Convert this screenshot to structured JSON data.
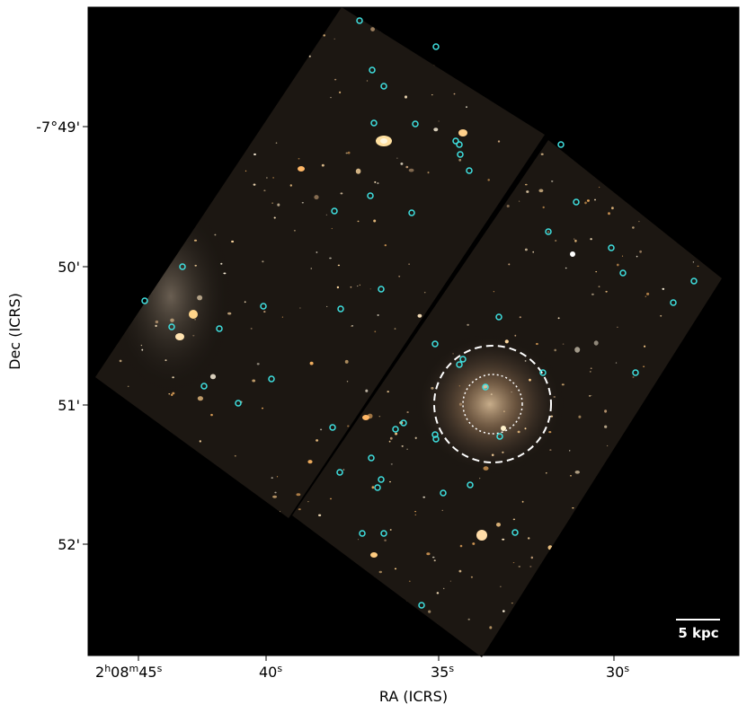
{
  "axes": {
    "xlabel": "RA (ICRS)",
    "ylabel": "Dec (ICRS)",
    "x_ticks": [
      {
        "label_main": "2",
        "sup_h": "h",
        "mid": "08",
        "sup_m": "m",
        "tail": "45",
        "sup_s": "s"
      },
      {
        "label": "40",
        "sup_s": "s"
      },
      {
        "label": "35",
        "sup_s": "s"
      },
      {
        "label": "30",
        "sup_s": "s"
      }
    ],
    "y_ticks": [
      "-7°49'",
      "50'",
      "51'",
      "52'"
    ]
  },
  "scalebar": {
    "label": "5 kpc"
  },
  "colors": {
    "background": "#000000",
    "markers": "#3fe0e0",
    "apertures": "#ffffff",
    "galaxy_glow": "#d8b890"
  },
  "image": {
    "description_kind": "HST-like color mosaic of two rotated detector chips on black",
    "marker_count": 56,
    "apertures": [
      "outer-dashed-circle",
      "inner-dotted-circle"
    ]
  }
}
